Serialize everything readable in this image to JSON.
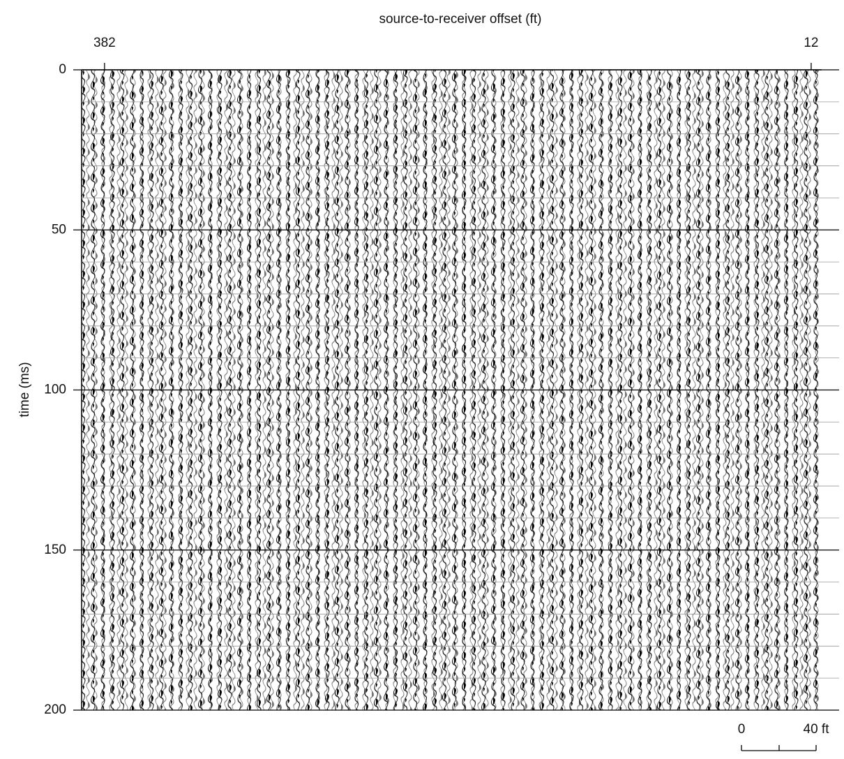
{
  "chart_data": {
    "type": "seismic",
    "title": "source-to-receiver offset (ft)",
    "ylabel": "time (ms)",
    "xlim": [
      394,
      6.5
    ],
    "xticks": [
      382,
      12
    ],
    "ylim": [
      0,
      200
    ],
    "yticks": [
      0,
      50,
      100,
      150,
      200
    ],
    "minor_yticks": [
      10,
      20,
      30,
      40,
      60,
      70,
      80,
      90,
      110,
      120,
      130,
      140,
      160,
      170,
      180,
      190
    ],
    "scale_bar": {
      "labels": [
        "0",
        "40 ft"
      ]
    }
  }
}
